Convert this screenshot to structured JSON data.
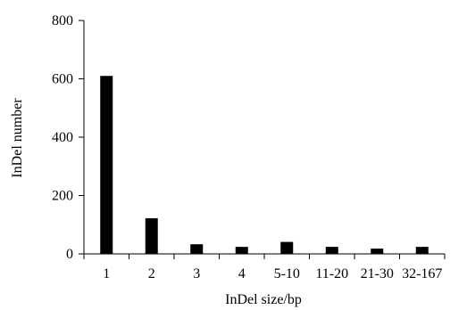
{
  "chart_data": {
    "type": "bar",
    "categories": [
      "1",
      "2",
      "3",
      "4",
      "5-10",
      "11-20",
      "21-30",
      "32-167"
    ],
    "values": [
      610,
      122,
      33,
      24,
      41,
      24,
      18,
      24
    ],
    "title": "",
    "xlabel": "InDel size/bp",
    "ylabel": "InDel number",
    "ylim": [
      0,
      800
    ],
    "yticks": [
      0,
      200,
      400,
      600,
      800
    ],
    "grid": false,
    "legend": "none",
    "bar_color": "#000000"
  }
}
